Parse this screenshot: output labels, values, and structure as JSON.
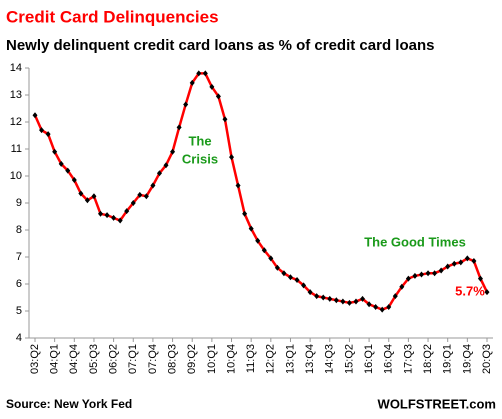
{
  "chart_data": {
    "type": "line",
    "title": "Credit Card  Delinquencies",
    "subtitle": "Newly delinquent credit card loans as % of credit card loans",
    "source": "Source: New York Fed",
    "brand": "WOLFSTREET.com",
    "color": "#ff0000",
    "marker_color": "#000000",
    "categories": [
      "03:Q2",
      null,
      null,
      "04:Q1",
      null,
      null,
      "04:Q4",
      null,
      null,
      "05:Q3",
      null,
      null,
      "06:Q2",
      null,
      null,
      "07:Q1",
      null,
      null,
      "07:Q4",
      null,
      null,
      "08:Q3",
      null,
      null,
      "09:Q2",
      null,
      null,
      "10:Q1",
      null,
      null,
      "10:Q4",
      null,
      null,
      "11:Q3",
      null,
      null,
      "12:Q2",
      null,
      null,
      "13:Q1",
      null,
      null,
      "13:Q4",
      null,
      null,
      "14:Q3",
      null,
      null,
      "15:Q2",
      null,
      null,
      "16:Q1",
      null,
      null,
      "16:Q4",
      null,
      null,
      "17:Q3",
      null,
      null,
      "18:Q2",
      null,
      null,
      "19:Q1",
      null,
      null,
      "19:Q4",
      null,
      null,
      "20:Q3"
    ],
    "values": [
      12.25,
      11.7,
      11.55,
      10.9,
      10.45,
      10.2,
      9.85,
      9.35,
      9.1,
      9.25,
      8.6,
      8.55,
      8.45,
      8.35,
      8.7,
      9.0,
      9.3,
      9.25,
      9.65,
      10.1,
      10.4,
      10.9,
      11.8,
      12.65,
      13.45,
      13.8,
      13.8,
      13.3,
      12.95,
      12.1,
      10.7,
      9.65,
      8.6,
      8.05,
      7.6,
      7.25,
      6.95,
      6.6,
      6.4,
      6.25,
      6.15,
      5.95,
      5.7,
      5.55,
      5.5,
      5.45,
      5.4,
      5.35,
      5.3,
      5.35,
      5.45,
      5.25,
      5.15,
      5.05,
      5.15,
      5.55,
      5.9,
      6.2,
      6.3,
      6.35,
      6.4,
      6.4,
      6.5,
      6.65,
      6.75,
      6.8,
      6.95,
      6.85,
      6.2,
      5.7
    ],
    "ylim": [
      4,
      14
    ],
    "yticks": [
      4,
      5,
      6,
      7,
      8,
      9,
      10,
      11,
      12,
      13,
      14
    ],
    "annotations": [
      {
        "lines": [
          "The",
          "Crisis"
        ],
        "color": "#1a9a1a"
      },
      {
        "lines": [
          "The Good Times"
        ],
        "color": "#1a9a1a"
      },
      {
        "lines": [
          "5.7%"
        ],
        "color": "#ff0000"
      }
    ]
  }
}
